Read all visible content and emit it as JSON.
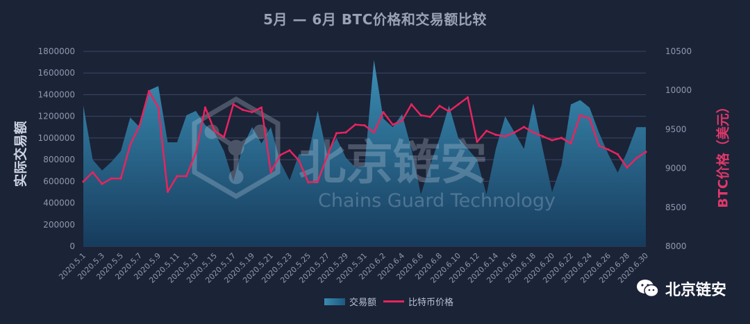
{
  "title": "5月 — 6月 BTC价格和交易额比较",
  "ylabel_left": "实际交易额",
  "ylabel_right": "BTC价格（美元）",
  "watermark": {
    "cn": "北京链安",
    "en": "Chains Guard Technology"
  },
  "brand": "北京链安",
  "legend": [
    "交易额",
    "比特币价格"
  ],
  "colors": {
    "background": "#1b2337",
    "area": "#2f7fa8",
    "line": "#e8245e",
    "grid": "#3d4763",
    "tick": "#8f99ad"
  },
  "chart_data": {
    "type": "area+line",
    "x": [
      "2020.5.1",
      "2020.5.2",
      "2020.5.3",
      "2020.5.4",
      "2020.5.5",
      "2020.5.6",
      "2020.5.7",
      "2020.5.8",
      "2020.5.9",
      "2020.5.10",
      "2020.5.11",
      "2020.5.12",
      "2020.5.13",
      "2020.5.14",
      "2020.5.15",
      "2020.5.16",
      "2020.5.17",
      "2020.5.18",
      "2020.5.19",
      "2020.5.20",
      "2020.5.21",
      "2020.5.22",
      "2020.5.23",
      "2020.5.24",
      "2020.5.25",
      "2020.5.26",
      "2020.5.27",
      "2020.5.28",
      "2020.5.29",
      "2020.5.30",
      "2020.5.31",
      "2020.6.1",
      "2020.6.2",
      "2020.6.3",
      "2020.6.4",
      "2020.6.5",
      "2020.6.6",
      "2020.6.7",
      "2020.6.8",
      "2020.6.9",
      "2020.6.10",
      "2020.6.11",
      "2020.6.12",
      "2020.6.13",
      "2020.6.14",
      "2020.6.15",
      "2020.6.16",
      "2020.6.17",
      "2020.6.18",
      "2020.6.19",
      "2020.6.20",
      "2020.6.21",
      "2020.6.22",
      "2020.6.23",
      "2020.6.24",
      "2020.6.25",
      "2020.6.26",
      "2020.6.27",
      "2020.6.28",
      "2020.6.29",
      "2020.6.30"
    ],
    "x_tick_labels": [
      "2020.5.1",
      "2020.5.3",
      "2020.5.5",
      "2020.5.7",
      "2020.5.9",
      "2020.5.11",
      "2020.5.13",
      "2020.5.15",
      "2020.5.17",
      "2020.5.19",
      "2020.5.21",
      "2020.5.23",
      "2020.5.25",
      "2020.5.27",
      "2020.5.29",
      "2020.5.31",
      "2020.6.2",
      "2020.6.4",
      "2020.6.6",
      "2020.6.8",
      "2020.6.10",
      "2020.6.12",
      "2020.6.14",
      "2020.6.16",
      "2020.6.18",
      "2020.6.20",
      "2020.6.22",
      "2020.6.24",
      "2020.6.26",
      "2020.6.28",
      "2020.6.30"
    ],
    "series": [
      {
        "name": "交易额",
        "axis": "left",
        "kind": "area",
        "values": [
          1300000,
          800000,
          700000,
          780000,
          880000,
          1190000,
          1100000,
          1440000,
          1480000,
          960000,
          960000,
          1210000,
          1250000,
          1120000,
          1050000,
          880000,
          600000,
          920000,
          1100000,
          950000,
          1100000,
          780000,
          610000,
          850000,
          850000,
          1250000,
          850000,
          1000000,
          820000,
          730000,
          740000,
          1720000,
          1180000,
          1100000,
          1220000,
          900000,
          480000,
          750000,
          1000000,
          1300000,
          1000000,
          900000,
          800000,
          480000,
          900000,
          1200000,
          1050000,
          900000,
          1320000,
          900000,
          500000,
          750000,
          1310000,
          1350000,
          1280000,
          1050000,
          850000,
          680000,
          870000,
          1100000,
          1100000
        ]
      },
      {
        "name": "比特币价格",
        "axis": "right",
        "kind": "line",
        "values": [
          8830,
          8950,
          8800,
          8870,
          8870,
          9300,
          9550,
          9990,
          9780,
          8700,
          8900,
          8900,
          9200,
          9780,
          9480,
          9400,
          9820,
          9750,
          9720,
          9780,
          8950,
          9170,
          9230,
          9100,
          8820,
          8830,
          9150,
          9450,
          9460,
          9560,
          9550,
          9460,
          9720,
          9560,
          9610,
          9820,
          9680,
          9660,
          9800,
          9730,
          9820,
          9910,
          9340,
          9480,
          9430,
          9410,
          9460,
          9530,
          9460,
          9410,
          9360,
          9390,
          9320,
          9680,
          9640,
          9290,
          9240,
          9180,
          9010,
          9130,
          9210
        ]
      }
    ],
    "ylim_left": [
      0,
      1800000
    ],
    "yticks_left": [
      "0",
      "200000",
      "400000",
      "600000",
      "800000",
      "1000000",
      "1200000",
      "1400000",
      "1600000",
      "1800000"
    ],
    "ylim_right": [
      8000,
      10500
    ],
    "yticks_right": [
      "8000",
      "8500",
      "9000",
      "9500",
      "10000",
      "10500"
    ],
    "grid": true,
    "legend_position": "bottom-center"
  }
}
